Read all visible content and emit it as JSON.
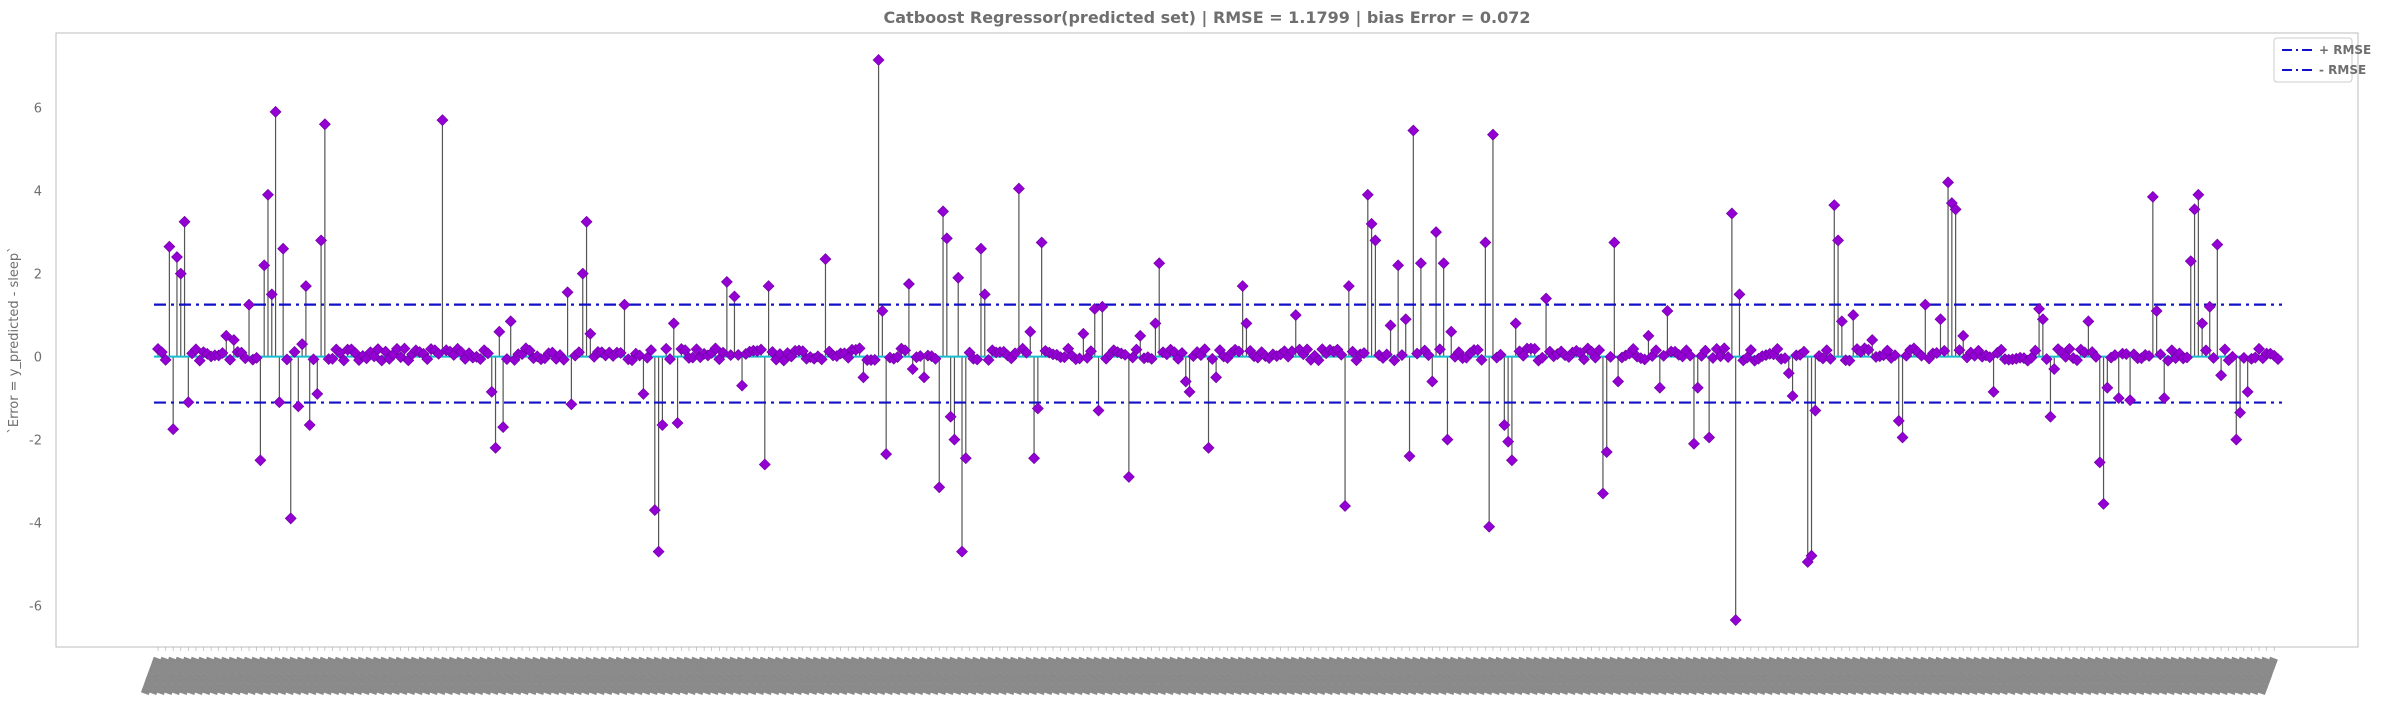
{
  "chart_data": {
    "type": "scatter",
    "title": "Catboost Regressor(predicted set) | RMSE = 1.1799 | bias Error = 0.072",
    "xlabel": "",
    "ylabel": "`Error = y_predicted - sleep`",
    "ylim": [
      -7.0,
      7.8
    ],
    "yticks": [
      -6,
      -4,
      -2,
      0,
      2,
      4,
      6
    ],
    "n_points": 560,
    "rmse": 1.1799,
    "bias_error": 0.072,
    "reference_lines": [
      {
        "name": "+ RMSE",
        "y": 1.2519,
        "style": "dashdot",
        "color": "#1010c8"
      },
      {
        "name": "- RMSE",
        "y": -1.1079,
        "style": "dashdot",
        "color": "#1010c8"
      }
    ],
    "zero_line": {
      "y": 0,
      "color": "#17becf"
    },
    "legend": {
      "position": "top-right",
      "entries": [
        "+ RMSE",
        "- RMSE"
      ]
    },
    "marker": {
      "shape": "diamond",
      "color": "#9400d3",
      "stem_color": "#555555"
    },
    "grid": false,
    "outliers": [
      {
        "i": 3,
        "y": 2.65
      },
      {
        "i": 4,
        "y": -1.75
      },
      {
        "i": 5,
        "y": 2.4
      },
      {
        "i": 6,
        "y": 2.0
      },
      {
        "i": 7,
        "y": 3.25
      },
      {
        "i": 8,
        "y": -1.1
      },
      {
        "i": 18,
        "y": 0.5
      },
      {
        "i": 20,
        "y": 0.4
      },
      {
        "i": 24,
        "y": 1.25
      },
      {
        "i": 27,
        "y": -2.5
      },
      {
        "i": 28,
        "y": 2.2
      },
      {
        "i": 29,
        "y": 3.9
      },
      {
        "i": 30,
        "y": 1.5
      },
      {
        "i": 31,
        "y": 5.9
      },
      {
        "i": 32,
        "y": -1.1
      },
      {
        "i": 33,
        "y": 2.6
      },
      {
        "i": 35,
        "y": -3.9
      },
      {
        "i": 37,
        "y": -1.2
      },
      {
        "i": 38,
        "y": 0.3
      },
      {
        "i": 39,
        "y": 1.7
      },
      {
        "i": 40,
        "y": -1.65
      },
      {
        "i": 42,
        "y": -0.9
      },
      {
        "i": 43,
        "y": 2.8
      },
      {
        "i": 44,
        "y": 5.6
      },
      {
        "i": 75,
        "y": 5.7
      },
      {
        "i": 88,
        "y": -0.85
      },
      {
        "i": 89,
        "y": -2.2
      },
      {
        "i": 90,
        "y": 0.6
      },
      {
        "i": 91,
        "y": -1.7
      },
      {
        "i": 93,
        "y": 0.85
      },
      {
        "i": 108,
        "y": 1.55
      },
      {
        "i": 109,
        "y": -1.15
      },
      {
        "i": 112,
        "y": 2.0
      },
      {
        "i": 113,
        "y": 3.25
      },
      {
        "i": 114,
        "y": 0.55
      },
      {
        "i": 123,
        "y": 1.25
      },
      {
        "i": 128,
        "y": -0.9
      },
      {
        "i": 131,
        "y": -3.7
      },
      {
        "i": 132,
        "y": -4.7
      },
      {
        "i": 133,
        "y": -1.65
      },
      {
        "i": 136,
        "y": 0.8
      },
      {
        "i": 137,
        "y": -1.6
      },
      {
        "i": 150,
        "y": 1.8
      },
      {
        "i": 152,
        "y": 1.45
      },
      {
        "i": 154,
        "y": -0.7
      },
      {
        "i": 160,
        "y": -2.6
      },
      {
        "i": 161,
        "y": 1.7
      },
      {
        "i": 176,
        "y": 2.35
      },
      {
        "i": 186,
        "y": -0.5
      },
      {
        "i": 190,
        "y": 7.15
      },
      {
        "i": 191,
        "y": 1.1
      },
      {
        "i": 192,
        "y": -2.35
      },
      {
        "i": 198,
        "y": 1.75
      },
      {
        "i": 199,
        "y": -0.3
      },
      {
        "i": 202,
        "y": -0.5
      },
      {
        "i": 206,
        "y": -3.15
      },
      {
        "i": 207,
        "y": 3.5
      },
      {
        "i": 208,
        "y": 2.85
      },
      {
        "i": 209,
        "y": -1.45
      },
      {
        "i": 210,
        "y": -2.0
      },
      {
        "i": 211,
        "y": 1.9
      },
      {
        "i": 212,
        "y": -4.7
      },
      {
        "i": 213,
        "y": -2.45
      },
      {
        "i": 217,
        "y": 2.6
      },
      {
        "i": 218,
        "y": 1.5
      },
      {
        "i": 227,
        "y": 4.05
      },
      {
        "i": 230,
        "y": 0.6
      },
      {
        "i": 231,
        "y": -2.45
      },
      {
        "i": 232,
        "y": -1.25
      },
      {
        "i": 233,
        "y": 2.75
      },
      {
        "i": 244,
        "y": 0.55
      },
      {
        "i": 247,
        "y": 1.15
      },
      {
        "i": 249,
        "y": 1.2
      },
      {
        "i": 248,
        "y": -1.3
      },
      {
        "i": 256,
        "y": -2.9
      },
      {
        "i": 259,
        "y": 0.5
      },
      {
        "i": 264,
        "y": 2.25
      },
      {
        "i": 263,
        "y": 0.8
      },
      {
        "i": 271,
        "y": -0.6
      },
      {
        "i": 272,
        "y": -0.85
      },
      {
        "i": 277,
        "y": -2.2
      },
      {
        "i": 279,
        "y": -0.5
      },
      {
        "i": 286,
        "y": 1.7
      },
      {
        "i": 287,
        "y": 0.8
      },
      {
        "i": 300,
        "y": 1.0
      },
      {
        "i": 313,
        "y": -3.6
      },
      {
        "i": 314,
        "y": 1.7
      },
      {
        "i": 319,
        "y": 3.9
      },
      {
        "i": 320,
        "y": 3.2
      },
      {
        "i": 321,
        "y": 2.8
      },
      {
        "i": 325,
        "y": 0.75
      },
      {
        "i": 327,
        "y": 2.2
      },
      {
        "i": 329,
        "y": 0.9
      },
      {
        "i": 330,
        "y": -2.4
      },
      {
        "i": 331,
        "y": 5.45
      },
      {
        "i": 333,
        "y": 2.25
      },
      {
        "i": 336,
        "y": -0.6
      },
      {
        "i": 337,
        "y": 3.0
      },
      {
        "i": 339,
        "y": 2.25
      },
      {
        "i": 340,
        "y": -2.0
      },
      {
        "i": 341,
        "y": 0.6
      },
      {
        "i": 352,
        "y": 5.35
      },
      {
        "i": 351,
        "y": -4.1
      },
      {
        "i": 350,
        "y": 2.75
      },
      {
        "i": 355,
        "y": -1.65
      },
      {
        "i": 356,
        "y": -2.05
      },
      {
        "i": 357,
        "y": -2.5
      },
      {
        "i": 358,
        "y": 0.8
      },
      {
        "i": 366,
        "y": 1.4
      },
      {
        "i": 381,
        "y": -3.3
      },
      {
        "i": 382,
        "y": -2.3
      },
      {
        "i": 384,
        "y": 2.75
      },
      {
        "i": 385,
        "y": -0.6
      },
      {
        "i": 393,
        "y": 0.5
      },
      {
        "i": 396,
        "y": -0.75
      },
      {
        "i": 398,
        "y": 1.1
      },
      {
        "i": 405,
        "y": -2.1
      },
      {
        "i": 406,
        "y": -0.75
      },
      {
        "i": 409,
        "y": -1.95
      },
      {
        "i": 415,
        "y": 3.45
      },
      {
        "i": 416,
        "y": -6.35
      },
      {
        "i": 417,
        "y": 1.5
      },
      {
        "i": 430,
        "y": -0.4
      },
      {
        "i": 431,
        "y": -0.95
      },
      {
        "i": 435,
        "y": -4.95
      },
      {
        "i": 436,
        "y": -4.8
      },
      {
        "i": 437,
        "y": -1.3
      },
      {
        "i": 442,
        "y": 3.65
      },
      {
        "i": 443,
        "y": 2.8
      },
      {
        "i": 444,
        "y": 0.85
      },
      {
        "i": 447,
        "y": 1.0
      },
      {
        "i": 452,
        "y": 0.4
      },
      {
        "i": 459,
        "y": -1.55
      },
      {
        "i": 460,
        "y": -1.95
      },
      {
        "i": 466,
        "y": 1.25
      },
      {
        "i": 470,
        "y": 0.9
      },
      {
        "i": 472,
        "y": 4.2
      },
      {
        "i": 473,
        "y": 3.7
      },
      {
        "i": 474,
        "y": 3.55
      },
      {
        "i": 476,
        "y": 0.5
      },
      {
        "i": 484,
        "y": -0.85
      },
      {
        "i": 496,
        "y": 1.15
      },
      {
        "i": 497,
        "y": 0.9
      },
      {
        "i": 499,
        "y": -1.45
      },
      {
        "i": 500,
        "y": -0.3
      },
      {
        "i": 509,
        "y": 0.85
      },
      {
        "i": 512,
        "y": -2.55
      },
      {
        "i": 513,
        "y": -3.55
      },
      {
        "i": 514,
        "y": -0.75
      },
      {
        "i": 517,
        "y": -1.0
      },
      {
        "i": 520,
        "y": -1.05
      },
      {
        "i": 526,
        "y": 3.85
      },
      {
        "i": 527,
        "y": 1.1
      },
      {
        "i": 529,
        "y": -1.0
      },
      {
        "i": 536,
        "y": 2.3
      },
      {
        "i": 538,
        "y": 3.9
      },
      {
        "i": 537,
        "y": 3.55
      },
      {
        "i": 539,
        "y": 0.8
      },
      {
        "i": 541,
        "y": 1.2
      },
      {
        "i": 543,
        "y": 2.7
      },
      {
        "i": 544,
        "y": -0.45
      },
      {
        "i": 548,
        "y": -2.0
      },
      {
        "i": 549,
        "y": -1.35
      },
      {
        "i": 551,
        "y": -0.85
      }
    ]
  }
}
